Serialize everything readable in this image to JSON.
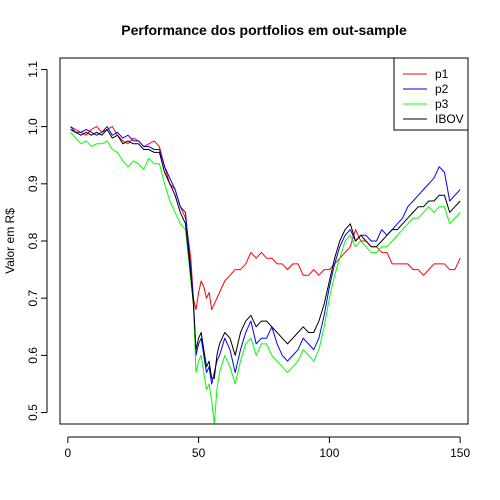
{
  "chart_data": {
    "type": "line",
    "title": "Performance dos portfolios em out-sample",
    "xlabel": "",
    "ylabel": "Valor em R$",
    "xlim": [
      -3,
      153
    ],
    "ylim": [
      0.48,
      1.12
    ],
    "x_ticks": [
      0,
      50,
      100,
      150
    ],
    "y_ticks": [
      0.5,
      0.6,
      0.7,
      0.8,
      0.9,
      1.0,
      1.1
    ],
    "legend": {
      "placement": "top-right",
      "entries": [
        "p1",
        "p2",
        "p3",
        "IBOV"
      ]
    },
    "series": [
      {
        "name": "p1",
        "color": "#ff0000",
        "x": [
          1,
          3,
          5,
          7,
          9,
          11,
          13,
          15,
          17,
          19,
          21,
          23,
          25,
          27,
          29,
          31,
          33,
          35,
          37,
          39,
          41,
          43,
          45,
          47,
          48,
          49,
          50,
          51,
          52,
          53,
          54,
          55,
          56,
          57,
          58,
          60,
          62,
          64,
          66,
          68,
          70,
          72,
          74,
          76,
          78,
          80,
          82,
          84,
          86,
          88,
          90,
          92,
          94,
          96,
          98,
          100,
          102,
          104,
          106,
          108,
          110,
          112,
          114,
          116,
          118,
          120,
          122,
          124,
          126,
          128,
          130,
          132,
          134,
          136,
          138,
          140,
          142,
          144,
          146,
          148,
          150
        ],
        "y": [
          1.0,
          0.995,
          0.99,
          0.985,
          0.995,
          1.0,
          0.99,
          0.995,
          1.0,
          0.985,
          0.975,
          0.97,
          0.98,
          0.975,
          0.965,
          0.97,
          0.975,
          0.965,
          0.93,
          0.9,
          0.89,
          0.86,
          0.84,
          0.77,
          0.7,
          0.68,
          0.71,
          0.73,
          0.72,
          0.7,
          0.71,
          0.68,
          0.69,
          0.7,
          0.71,
          0.73,
          0.74,
          0.75,
          0.75,
          0.76,
          0.78,
          0.77,
          0.78,
          0.77,
          0.77,
          0.76,
          0.76,
          0.75,
          0.76,
          0.76,
          0.74,
          0.74,
          0.75,
          0.74,
          0.75,
          0.75,
          0.76,
          0.77,
          0.78,
          0.79,
          0.82,
          0.8,
          0.8,
          0.79,
          0.79,
          0.78,
          0.78,
          0.76,
          0.76,
          0.76,
          0.76,
          0.75,
          0.75,
          0.74,
          0.75,
          0.76,
          0.76,
          0.76,
          0.75,
          0.75,
          0.77
        ]
      },
      {
        "name": "p2",
        "color": "#0000ff",
        "x": [
          1,
          3,
          5,
          7,
          9,
          11,
          13,
          15,
          17,
          19,
          21,
          23,
          25,
          27,
          29,
          31,
          33,
          35,
          37,
          39,
          41,
          43,
          45,
          47,
          48,
          49,
          50,
          51,
          52,
          53,
          54,
          55,
          56,
          57,
          58,
          60,
          62,
          64,
          66,
          68,
          70,
          72,
          74,
          76,
          78,
          80,
          82,
          84,
          86,
          88,
          90,
          92,
          94,
          96,
          98,
          100,
          102,
          104,
          106,
          108,
          110,
          112,
          114,
          116,
          118,
          120,
          122,
          124,
          126,
          128,
          130,
          132,
          134,
          136,
          138,
          140,
          142,
          144,
          146,
          148,
          150
        ],
        "y": [
          1.0,
          0.99,
          0.99,
          0.995,
          0.99,
          0.985,
          0.99,
          1.0,
          0.985,
          0.99,
          0.98,
          0.985,
          0.975,
          0.975,
          0.965,
          0.965,
          0.96,
          0.96,
          0.93,
          0.91,
          0.89,
          0.86,
          0.85,
          0.75,
          0.7,
          0.6,
          0.62,
          0.63,
          0.6,
          0.57,
          0.58,
          0.55,
          0.57,
          0.59,
          0.6,
          0.63,
          0.61,
          0.57,
          0.61,
          0.64,
          0.66,
          0.62,
          0.63,
          0.63,
          0.65,
          0.62,
          0.6,
          0.59,
          0.6,
          0.61,
          0.63,
          0.62,
          0.61,
          0.63,
          0.67,
          0.72,
          0.76,
          0.79,
          0.81,
          0.82,
          0.8,
          0.81,
          0.81,
          0.8,
          0.8,
          0.82,
          0.81,
          0.82,
          0.83,
          0.84,
          0.86,
          0.87,
          0.88,
          0.89,
          0.9,
          0.91,
          0.93,
          0.92,
          0.87,
          0.88,
          0.89
        ]
      },
      {
        "name": "p3",
        "color": "#00ff00",
        "x": [
          1,
          3,
          5,
          7,
          9,
          11,
          13,
          15,
          17,
          19,
          21,
          23,
          25,
          27,
          29,
          31,
          33,
          35,
          37,
          39,
          41,
          43,
          45,
          47,
          48,
          49,
          50,
          51,
          52,
          53,
          54,
          55,
          56,
          57,
          58,
          60,
          62,
          64,
          66,
          68,
          70,
          72,
          74,
          76,
          78,
          80,
          82,
          84,
          86,
          88,
          90,
          92,
          94,
          96,
          98,
          100,
          102,
          104,
          106,
          108,
          110,
          112,
          114,
          116,
          118,
          120,
          122,
          124,
          126,
          128,
          130,
          132,
          134,
          136,
          138,
          140,
          142,
          144,
          146,
          148,
          150
        ],
        "y": [
          0.99,
          0.98,
          0.97,
          0.975,
          0.965,
          0.97,
          0.97,
          0.975,
          0.96,
          0.955,
          0.94,
          0.93,
          0.94,
          0.935,
          0.925,
          0.945,
          0.935,
          0.935,
          0.9,
          0.87,
          0.85,
          0.83,
          0.82,
          0.73,
          0.69,
          0.57,
          0.59,
          0.6,
          0.57,
          0.54,
          0.55,
          0.52,
          0.48,
          0.54,
          0.57,
          0.6,
          0.58,
          0.55,
          0.59,
          0.62,
          0.63,
          0.6,
          0.62,
          0.62,
          0.6,
          0.59,
          0.58,
          0.57,
          0.58,
          0.59,
          0.61,
          0.6,
          0.59,
          0.61,
          0.65,
          0.7,
          0.74,
          0.77,
          0.8,
          0.81,
          0.79,
          0.8,
          0.79,
          0.78,
          0.78,
          0.79,
          0.79,
          0.8,
          0.81,
          0.82,
          0.83,
          0.84,
          0.84,
          0.85,
          0.86,
          0.85,
          0.86,
          0.86,
          0.83,
          0.84,
          0.85
        ]
      },
      {
        "name": "IBOV",
        "color": "#000000",
        "x": [
          1,
          3,
          5,
          7,
          9,
          11,
          13,
          15,
          17,
          19,
          21,
          23,
          25,
          27,
          29,
          31,
          33,
          35,
          37,
          39,
          41,
          43,
          45,
          47,
          48,
          49,
          50,
          51,
          52,
          53,
          54,
          55,
          56,
          57,
          58,
          60,
          62,
          64,
          66,
          68,
          70,
          72,
          74,
          76,
          78,
          80,
          82,
          84,
          86,
          88,
          90,
          92,
          94,
          96,
          98,
          100,
          102,
          104,
          106,
          108,
          110,
          112,
          114,
          116,
          118,
          120,
          122,
          124,
          126,
          128,
          130,
          132,
          134,
          136,
          138,
          140,
          142,
          144,
          146,
          148,
          150
        ],
        "y": [
          0.995,
          0.99,
          0.985,
          0.99,
          0.985,
          0.99,
          0.985,
          0.995,
          0.98,
          0.985,
          0.97,
          0.975,
          0.97,
          0.97,
          0.96,
          0.96,
          0.955,
          0.955,
          0.92,
          0.9,
          0.88,
          0.85,
          0.83,
          0.74,
          0.69,
          0.61,
          0.63,
          0.64,
          0.61,
          0.58,
          0.59,
          0.56,
          0.56,
          0.6,
          0.62,
          0.64,
          0.63,
          0.6,
          0.64,
          0.66,
          0.67,
          0.65,
          0.66,
          0.66,
          0.65,
          0.64,
          0.63,
          0.62,
          0.63,
          0.64,
          0.65,
          0.64,
          0.64,
          0.66,
          0.69,
          0.73,
          0.77,
          0.8,
          0.82,
          0.83,
          0.8,
          0.81,
          0.8,
          0.79,
          0.79,
          0.8,
          0.81,
          0.82,
          0.82,
          0.83,
          0.84,
          0.85,
          0.86,
          0.86,
          0.87,
          0.87,
          0.88,
          0.88,
          0.85,
          0.86,
          0.87
        ]
      }
    ]
  }
}
